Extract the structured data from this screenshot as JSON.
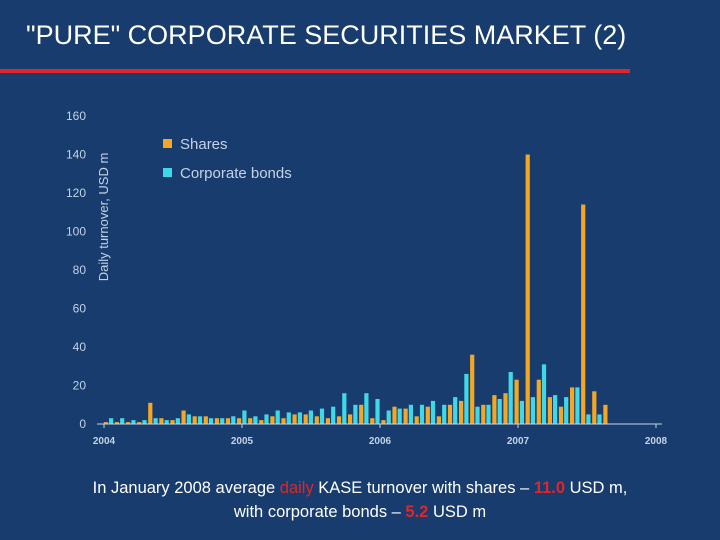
{
  "colors": {
    "background": "#173c6d",
    "title_rule": "#e0262a",
    "shares": "#f5a623",
    "bonds": "#3fd8e8",
    "axis_text": "#c4d3e6",
    "highlight": "#e0262a"
  },
  "slide": {
    "title": "\"PURE\" CORPORATE SECURITIES MARKET (2)"
  },
  "caption": {
    "line1_part1": "In January 2008 average ",
    "line1_hl1": "daily",
    "line1_part2": " KASE turnover with shares – ",
    "line1_hl2": "11.0",
    "line1_part3": " USD m,",
    "line2_part1": "with corporate bonds – ",
    "line2_hl1": "5.2",
    "line2_part2": " USD m"
  },
  "chart_data": {
    "type": "bar",
    "title": "",
    "xlabel": "",
    "ylabel": "Daily turnover, USD m",
    "ylim": [
      0,
      160
    ],
    "yticks": [
      0,
      20,
      40,
      60,
      80,
      100,
      120,
      140,
      160
    ],
    "xlim": [
      2004.0,
      2008.0
    ],
    "xticks": [
      "2004",
      "2005",
      "2006",
      "2007",
      "2008"
    ],
    "legend": {
      "placement": "top-left",
      "entries": [
        "Shares",
        "Corporate bonds"
      ]
    },
    "grid": false,
    "x": [
      2004.02,
      2004.1,
      2004.18,
      2004.26,
      2004.34,
      2004.42,
      2004.5,
      2004.58,
      2004.66,
      2004.74,
      2004.82,
      2004.9,
      2004.98,
      2005.06,
      2005.14,
      2005.22,
      2005.3,
      2005.38,
      2005.46,
      2005.54,
      2005.62,
      2005.7,
      2005.78,
      2005.86,
      2005.94,
      2006.02,
      2006.1,
      2006.18,
      2006.26,
      2006.34,
      2006.42,
      2006.5,
      2006.58,
      2006.66,
      2006.74,
      2006.82,
      2006.9,
      2006.98,
      2007.06,
      2007.14,
      2007.22,
      2007.3,
      2007.38,
      2007.46,
      2007.54,
      2007.62,
      2007.7,
      2007.78,
      2007.86,
      2007.94
    ],
    "series": [
      {
        "name": "Shares",
        "values": [
          1,
          1,
          1,
          1,
          11,
          3,
          2,
          7,
          4,
          4,
          3,
          3,
          3,
          3,
          2,
          4,
          3,
          5,
          5,
          4,
          3,
          4,
          5,
          10,
          3,
          2,
          9,
          8,
          4,
          9,
          4,
          10,
          12,
          36,
          10,
          15,
          16,
          23,
          140,
          23,
          14,
          9,
          19,
          114,
          17,
          10,
          0,
          0,
          0,
          0
        ]
      },
      {
        "name": "Corporate bonds",
        "values": [
          3,
          3,
          2,
          2,
          3,
          2,
          3,
          5,
          4,
          3,
          3,
          4,
          7,
          4,
          5,
          7,
          6,
          6,
          7,
          8,
          9,
          16,
          10,
          16,
          13,
          7,
          8,
          10,
          10,
          12,
          10,
          14,
          26,
          9,
          10,
          13,
          27,
          12,
          14,
          31,
          15,
          14,
          19,
          5,
          5,
          0,
          0,
          0,
          0,
          0
        ]
      }
    ]
  }
}
